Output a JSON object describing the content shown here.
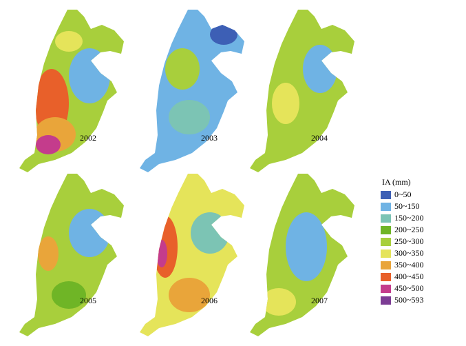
{
  "panels": [
    {
      "label": "2002"
    },
    {
      "label": "2003"
    },
    {
      "label": "2004"
    },
    {
      "label": "2005"
    },
    {
      "label": "2006"
    },
    {
      "label": "2007"
    }
  ],
  "legend": {
    "title": "IA (mm)",
    "items": [
      {
        "label": "0~50",
        "color": "#3d5fb5"
      },
      {
        "label": "50~150",
        "color": "#6fb3e4"
      },
      {
        "label": "150~200",
        "color": "#7cc4b4"
      },
      {
        "label": "200~250",
        "color": "#6fb526"
      },
      {
        "label": "250~300",
        "color": "#a8cf3c"
      },
      {
        "label": "300~350",
        "color": "#e5e45a"
      },
      {
        "label": "350~400",
        "color": "#e9a53a"
      },
      {
        "label": "400~450",
        "color": "#e8602a"
      },
      {
        "label": "450~500",
        "color": "#c43c8c"
      },
      {
        "label": "500~593",
        "color": "#7c3c94"
      }
    ]
  }
}
